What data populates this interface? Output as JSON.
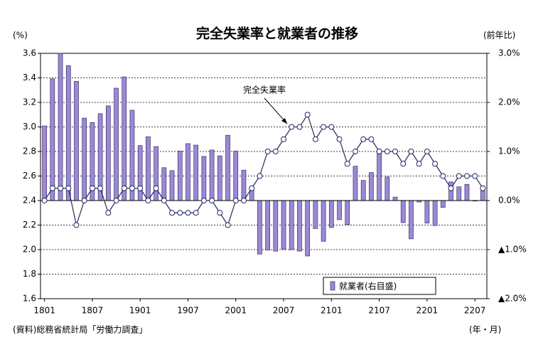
{
  "chart_data": {
    "type": "bar_line",
    "title": "完全失業率と就業者の推移",
    "y_label": "(%)",
    "y2_label": "(前年比)",
    "x_label": "(年・月)",
    "source": "(資料)総務省統計局「労働力調査」",
    "annotation": "完全失業率",
    "categories": [
      "1801",
      null,
      null,
      null,
      null,
      null,
      "1807",
      null,
      null,
      null,
      null,
      null,
      "1901",
      null,
      null,
      null,
      null,
      null,
      "1907",
      null,
      null,
      null,
      null,
      null,
      "2001",
      null,
      null,
      null,
      null,
      null,
      "2007",
      null,
      null,
      null,
      null,
      null,
      "2101",
      null,
      null,
      null,
      null,
      null,
      "2107",
      null,
      null,
      null,
      null,
      null,
      "2201",
      null,
      null,
      null,
      null,
      null,
      "2207",
      null
    ],
    "series": [
      {
        "name": "就業者(右目盛)",
        "kind": "bar",
        "axis": "y2",
        "color": "#9b88d9",
        "values": [
          1.52,
          2.48,
          3.0,
          2.75,
          2.43,
          1.68,
          1.59,
          1.77,
          1.93,
          2.29,
          2.52,
          1.84,
          1.12,
          1.3,
          1.1,
          0.67,
          0.61,
          1.01,
          1.16,
          1.13,
          0.9,
          1.03,
          0.91,
          1.33,
          1.01,
          0.62,
          0.23,
          -1.09,
          -1.01,
          -1.03,
          -0.99,
          -1.0,
          -1.03,
          -1.13,
          -0.57,
          -0.83,
          -0.55,
          -0.39,
          -0.49,
          0.7,
          0.41,
          0.57,
          1.0,
          0.48,
          0.07,
          -0.45,
          -0.78,
          -0.03,
          -0.46,
          -0.51,
          -0.14,
          0.38,
          0.28,
          0.33,
          -0.01,
          0.2
        ]
      },
      {
        "name": "完全失業率",
        "kind": "line",
        "axis": "y",
        "color": "#1f2a6b",
        "values": [
          2.4,
          2.5,
          2.5,
          2.5,
          2.2,
          2.4,
          2.5,
          2.5,
          2.3,
          2.4,
          2.5,
          2.5,
          2.5,
          2.4,
          2.5,
          2.4,
          2.3,
          2.3,
          2.3,
          2.3,
          2.4,
          2.4,
          2.3,
          2.2,
          2.4,
          2.4,
          2.5,
          2.6,
          2.8,
          2.8,
          2.9,
          3.0,
          3.0,
          3.1,
          2.9,
          3.0,
          3.0,
          2.9,
          2.7,
          2.8,
          2.9,
          2.9,
          2.8,
          2.8,
          2.8,
          2.7,
          2.8,
          2.7,
          2.8,
          2.7,
          2.6,
          2.5,
          2.6,
          2.6,
          2.6,
          2.5
        ]
      }
    ],
    "ylim": [
      1.6,
      3.6
    ],
    "yticks": [
      1.6,
      1.8,
      {
        "value": 2,
        "label": "2.0"
      },
      2.2,
      2.4,
      2.6,
      2.8,
      {
        "value": 3,
        "label": "3.0"
      },
      3.2,
      3.4,
      3.6
    ],
    "y2lim": [
      -2,
      3
    ],
    "y2ticks": [
      {
        "value": 3,
        "label": "3.0%"
      },
      {
        "value": 2,
        "label": "2.0%"
      },
      {
        "value": 1,
        "label": "1.0%"
      },
      {
        "value": 0,
        "label": "0.0%"
      },
      {
        "value": -1,
        "label": "▲1.0%"
      },
      {
        "value": -2,
        "label": "▲2.0%"
      }
    ],
    "grid": true,
    "legend": "bottom-right"
  }
}
